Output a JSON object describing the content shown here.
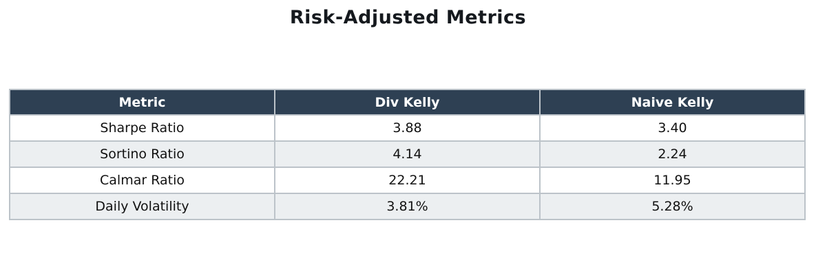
{
  "chart_data": {
    "type": "table",
    "title": "Risk-Adjusted Metrics",
    "columns": [
      "Metric",
      "Div Kelly",
      "Naive Kelly"
    ],
    "rows": [
      [
        "Sharpe Ratio",
        "3.88",
        "3.40"
      ],
      [
        "Sortino Ratio",
        "4.14",
        "2.24"
      ],
      [
        "Calmar Ratio",
        "22.21",
        "11.95"
      ],
      [
        "Daily Volatility",
        "3.81%",
        "5.28%"
      ]
    ],
    "layout": {
      "legend": "none",
      "grid": "table-borders",
      "row_striping": "alternate"
    }
  },
  "colors": {
    "header_bg": "#2e4053",
    "header_text": "#ffffff",
    "row_bg": "#ffffff",
    "row_alt_bg": "#eceff1",
    "border": "#bcc3c9",
    "title_text": "#15191e",
    "cell_text": "#111111"
  }
}
